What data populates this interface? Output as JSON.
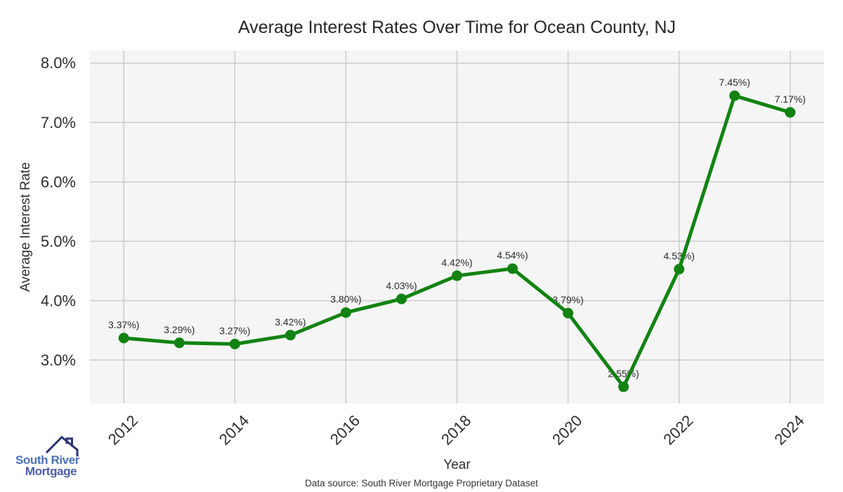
{
  "chart_data": {
    "type": "line",
    "title": "Average Interest Rates Over Time for Ocean County, NJ",
    "xlabel": "Year",
    "ylabel": "Average Interest Rate",
    "x": [
      2012,
      2013,
      2014,
      2015,
      2016,
      2017,
      2018,
      2019,
      2020,
      2021,
      2022,
      2023,
      2024
    ],
    "values": [
      3.37,
      3.29,
      3.27,
      3.42,
      3.8,
      4.03,
      4.42,
      4.54,
      3.79,
      2.55,
      4.53,
      7.45,
      7.17
    ],
    "point_labels": [
      "3.37%)",
      "3.29%)",
      "3.27%)",
      "3.42%)",
      "3.80%)",
      "4.03%)",
      "4.42%)",
      "4.54%)",
      "3.79%)",
      "2.55%)",
      "4.53%)",
      "7.45%)",
      "7.17%)"
    ],
    "xticks": [
      2012,
      2014,
      2016,
      2018,
      2020,
      2022,
      2024
    ],
    "yticks": [
      3,
      4,
      5,
      6,
      7,
      8
    ],
    "ytick_labels": [
      "3.0%",
      "4.0%",
      "5.0%",
      "6.0%",
      "7.0%",
      "8.0%"
    ],
    "xlim": [
      2011.39,
      2024.61
    ],
    "ylim": [
      2.27,
      8.21
    ],
    "grid": true,
    "legend": false,
    "line_color": "#128312",
    "marker_color": "#128312",
    "plot_bg": "#f5f5f5",
    "grid_color": "#cccccc",
    "text_color": "#2e2e2e",
    "label_color": "#2b2b2b"
  },
  "footer": {
    "source": "Data source: South River Mortgage Proprietary Dataset"
  },
  "logo": {
    "line1": "South River",
    "line2": "Mortgage",
    "line1_color": "#4a71b8",
    "line2_color": "#4b5cab",
    "icon_color": "#28336e"
  }
}
